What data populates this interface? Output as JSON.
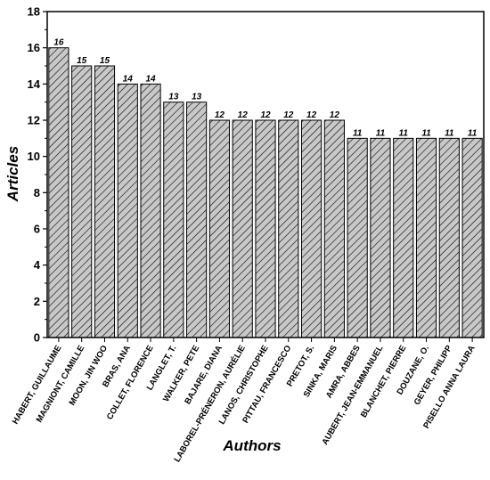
{
  "chart_data": {
    "type": "bar",
    "xlabel": "Authors",
    "ylabel": "Articles",
    "ylim": [
      0,
      18
    ],
    "yticks": [
      0,
      2,
      4,
      6,
      8,
      10,
      12,
      14,
      16,
      18
    ],
    "grid": false,
    "bar_fill": "#c8c8c8",
    "bar_pattern": "diagonal-hatch",
    "categories": [
      "HABERT, GUILLAUME",
      "MAGNIONT, CAMILLE",
      "MOON, JIN WOO",
      "BRAS, ANA",
      "COLLET, FLORENCE",
      "LANGLET, T.",
      "WALKER, PETE",
      "BAJARE, DIANA",
      "LABOREL-PRÉNERON, AURÉLIE",
      "LANOS, CHRISTOPHE",
      "PITTAU, FRANCESCO",
      "PRETOT, S.",
      "SINKA, MARIS",
      "AMRA, ABBES",
      "AUBERT, JEAN-EMMANUEL",
      "BLANCHET, PIERRE",
      "DOUZANE, O.",
      "GEYER, PHILIPP",
      "PISELLO ANNA LAURA"
    ],
    "values": [
      16,
      15,
      15,
      14,
      14,
      13,
      13,
      12,
      12,
      12,
      12,
      12,
      12,
      11,
      11,
      11,
      11,
      11,
      11
    ]
  }
}
